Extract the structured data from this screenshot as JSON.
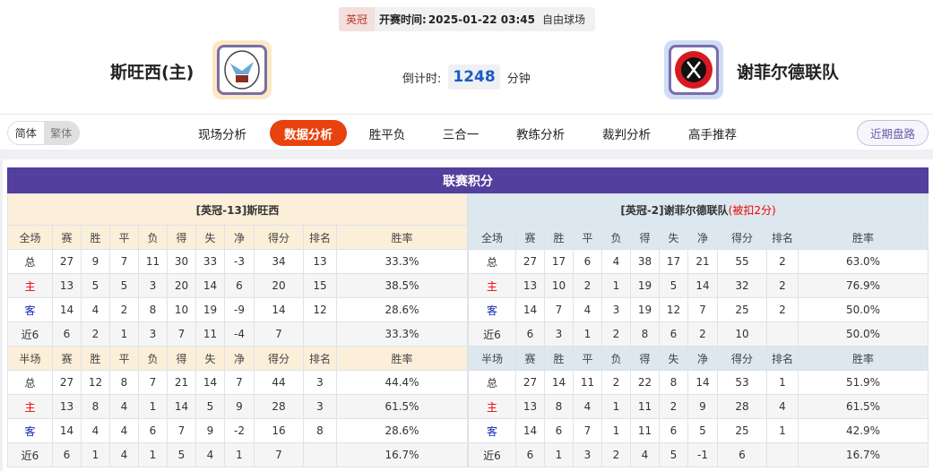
{
  "match": {
    "league": "英冠",
    "time_label": "开赛时间:",
    "time": "2025-01-22 03:45",
    "venue": "自由球场"
  },
  "home": {
    "name": "斯旺西(主)",
    "logo": "swansea-crest"
  },
  "away": {
    "name": "谢菲尔德联队",
    "logo": "sheffield-united-crest"
  },
  "countdown": {
    "label": "倒计时:",
    "value": "1248",
    "unit": "分钟"
  },
  "lang": {
    "simplified": "简体",
    "traditional": "繁体"
  },
  "nav": {
    "items": [
      "现场分析",
      "数据分析",
      "胜平负",
      "三合一",
      "教练分析",
      "裁判分析",
      "高手推荐"
    ],
    "active": 1,
    "recent": "近期盘路"
  },
  "colors": {
    "accent": "#e8420e",
    "title_bar": "#523f9e",
    "home_bg": "#fbefd9",
    "away_bg": "#dde7ef"
  },
  "standings": {
    "title": "联赛积分",
    "columns": [
      "赛",
      "胜",
      "平",
      "负",
      "得",
      "失",
      "净",
      "得分",
      "排名",
      "胜率"
    ],
    "full_label": "全场",
    "half_label": "半场",
    "home": {
      "header": "[英冠-13]斯旺西",
      "penalty": "",
      "full": [
        [
          "总",
          "27",
          "9",
          "7",
          "11",
          "30",
          "33",
          "-3",
          "34",
          "13",
          "33.3%"
        ],
        [
          "主",
          "13",
          "5",
          "5",
          "3",
          "20",
          "14",
          "6",
          "20",
          "15",
          "38.5%"
        ],
        [
          "客",
          "14",
          "4",
          "2",
          "8",
          "10",
          "19",
          "-9",
          "14",
          "12",
          "28.6%"
        ],
        [
          "近6",
          "6",
          "2",
          "1",
          "3",
          "7",
          "11",
          "-4",
          "7",
          "",
          "33.3%"
        ]
      ],
      "half": [
        [
          "总",
          "27",
          "12",
          "8",
          "7",
          "21",
          "14",
          "7",
          "44",
          "3",
          "44.4%"
        ],
        [
          "主",
          "13",
          "8",
          "4",
          "1",
          "14",
          "5",
          "9",
          "28",
          "3",
          "61.5%"
        ],
        [
          "客",
          "14",
          "4",
          "4",
          "6",
          "7",
          "9",
          "-2",
          "16",
          "8",
          "28.6%"
        ],
        [
          "近6",
          "6",
          "1",
          "4",
          "1",
          "5",
          "4",
          "1",
          "7",
          "",
          "16.7%"
        ]
      ]
    },
    "away": {
      "header": "[英冠-2]谢菲尔德联队",
      "penalty": "(被扣2分)",
      "full": [
        [
          "总",
          "27",
          "17",
          "6",
          "4",
          "38",
          "17",
          "21",
          "55",
          "2",
          "63.0%"
        ],
        [
          "主",
          "13",
          "10",
          "2",
          "1",
          "19",
          "5",
          "14",
          "32",
          "2",
          "76.9%"
        ],
        [
          "客",
          "14",
          "7",
          "4",
          "3",
          "19",
          "12",
          "7",
          "25",
          "2",
          "50.0%"
        ],
        [
          "近6",
          "6",
          "3",
          "1",
          "2",
          "8",
          "6",
          "2",
          "10",
          "",
          "50.0%"
        ]
      ],
      "half": [
        [
          "总",
          "27",
          "14",
          "11",
          "2",
          "22",
          "8",
          "14",
          "53",
          "1",
          "51.9%"
        ],
        [
          "主",
          "13",
          "8",
          "4",
          "1",
          "11",
          "2",
          "9",
          "28",
          "4",
          "61.5%"
        ],
        [
          "客",
          "14",
          "6",
          "7",
          "1",
          "11",
          "6",
          "5",
          "25",
          "1",
          "42.9%"
        ],
        [
          "近6",
          "6",
          "1",
          "3",
          "2",
          "4",
          "5",
          "-1",
          "6",
          "",
          "16.7%"
        ]
      ]
    }
  }
}
